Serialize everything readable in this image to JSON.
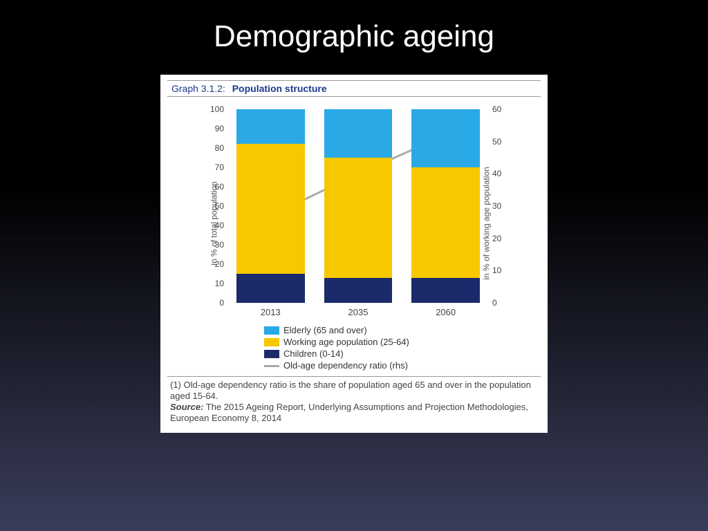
{
  "slide": {
    "title": "Demographic ageing"
  },
  "graph": {
    "id_label": "Graph 3.1.2:",
    "title": "Population structure",
    "type": "stacked-bar-with-line",
    "y_left": {
      "label": "in % of total population",
      "min": 0,
      "max": 100,
      "step": 10
    },
    "y_right": {
      "label": "in % of working age  population",
      "min": 0,
      "max": 60,
      "step": 10
    },
    "categories": [
      "2013",
      "2035",
      "2060"
    ],
    "series": {
      "children": {
        "label": "Children (0-14)",
        "color": "#1b2a6b",
        "values": [
          15,
          13,
          13
        ]
      },
      "working": {
        "label": "Working age population (25-64)",
        "color": "#f7c700",
        "values": [
          67,
          62,
          57
        ]
      },
      "elderly": {
        "label": "Elderly (65 and over)",
        "color": "#29a9e6",
        "values": [
          18,
          25,
          30
        ]
      }
    },
    "line": {
      "label": "Old-age dependency ratio (rhs)",
      "color": "#a9a9a9",
      "width": 3,
      "values": [
        27,
        40,
        52
      ]
    },
    "bar_width": 0.26,
    "background_color": "#ffffff",
    "legend_order": [
      "elderly",
      "working",
      "children"
    ]
  },
  "footnote": {
    "note": "(1) Old-age dependency ratio is the share of population aged 65 and over in the population aged 15-64.",
    "source_label": "Source:",
    "source_text": "The 2015 Ageing Report, Underlying Assumptions and Projection Methodologies, European Economy 8, 2014"
  }
}
